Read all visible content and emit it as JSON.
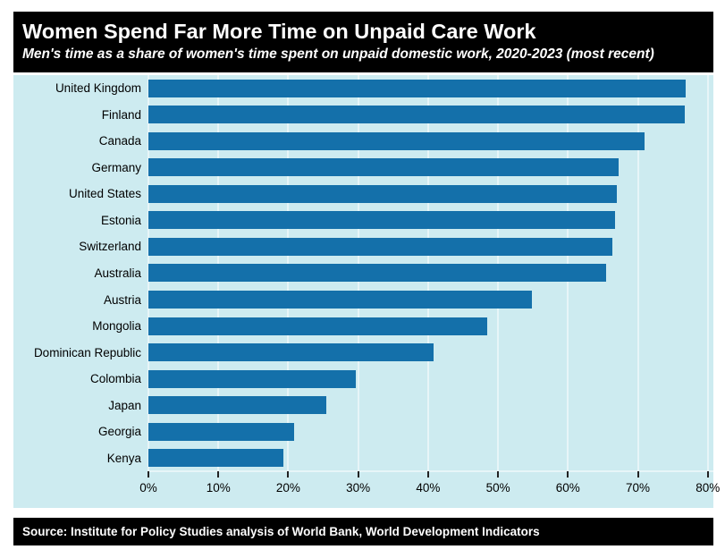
{
  "header": {
    "title": "Women Spend Far More Time on Unpaid Care Work",
    "subtitle": "Men's time as a share of women's time spent on unpaid domestic work, 2020-2023 (most recent)"
  },
  "chart_data": {
    "type": "bar",
    "orientation": "horizontal",
    "title": "Women Spend Far More Time on Unpaid Care Work",
    "subtitle": "Men's time as a share of women's time spent on unpaid domestic work, 2020-2023 (most recent)",
    "categories": [
      "United Kingdom",
      "Finland",
      "Canada",
      "Germany",
      "United States",
      "Estonia",
      "Switzerland",
      "Australia",
      "Austria",
      "Mongolia",
      "Dominican Republic",
      "Colombia",
      "Japan",
      "Georgia",
      "Kenya"
    ],
    "values": [
      76.9,
      76.7,
      70.9,
      67.3,
      67.0,
      66.7,
      66.4,
      65.5,
      54.8,
      48.4,
      40.8,
      29.7,
      25.5,
      20.8,
      19.3
    ],
    "value_unit": "%",
    "x_tick_labels": [
      "0%",
      "10%",
      "20%",
      "30%",
      "40%",
      "50%",
      "60%",
      "70%",
      "80%"
    ],
    "x_tick_values": [
      0,
      10,
      20,
      30,
      40,
      50,
      60,
      70,
      80
    ],
    "xlim": [
      0,
      80.8
    ],
    "grid": true,
    "legend": "none",
    "colors": {
      "bar": "#1470aa",
      "panel_background": "#cdebf0",
      "gridline": "#e7f5f8",
      "header_background": "#000000",
      "header_text": "#ffffff",
      "page_background": "#ffffff",
      "axis_text": "#000000"
    }
  },
  "footer": {
    "source": "Source: Institute for Policy Studies analysis of World Bank, World Development Indicators"
  }
}
